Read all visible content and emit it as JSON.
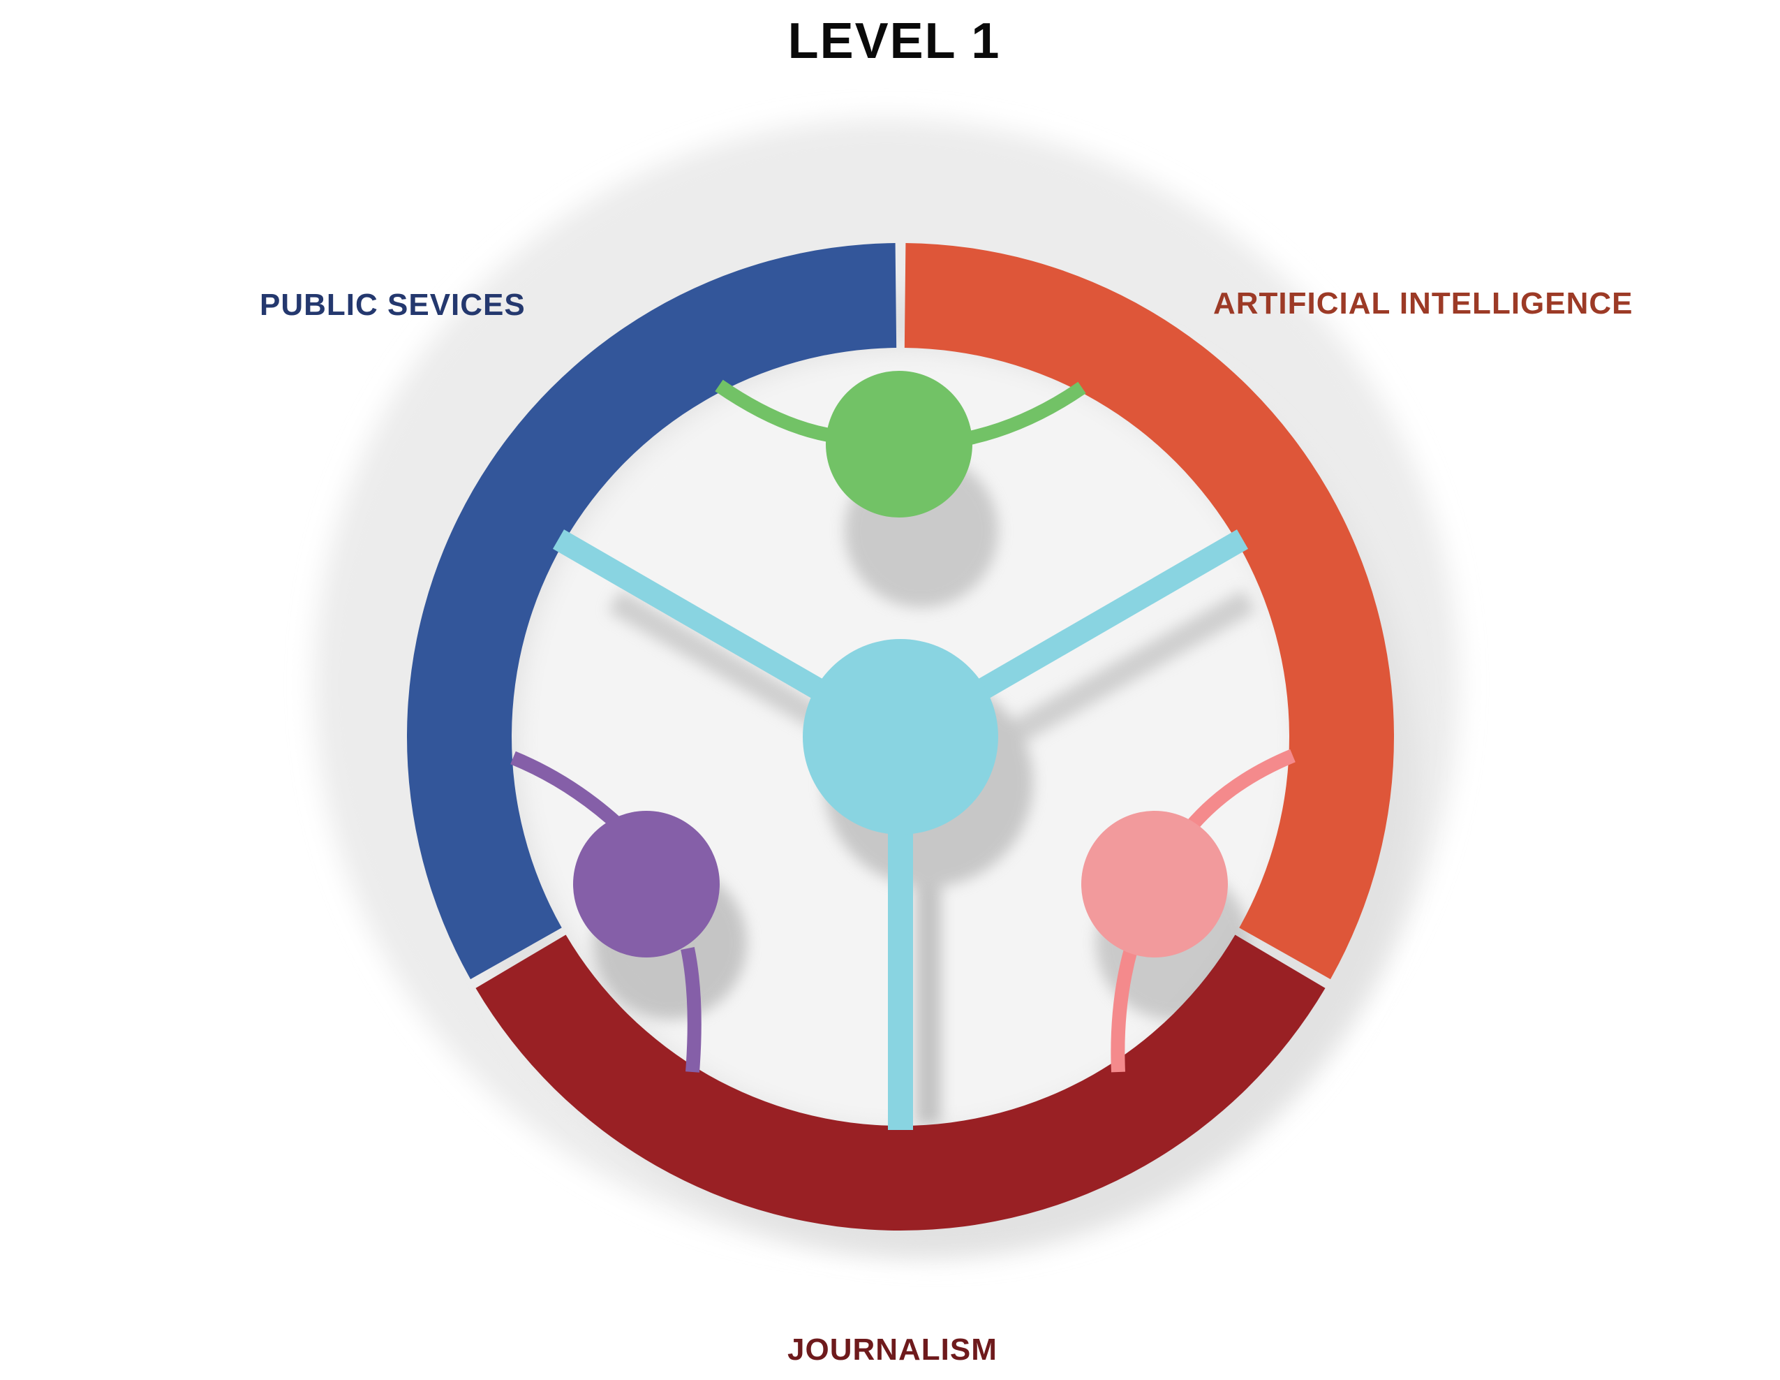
{
  "title": "LEVEL 1",
  "segments": [
    {
      "id": "public-services",
      "label": "PUBLIC SEVICES",
      "color": "#33569A",
      "text_color": "#24386E"
    },
    {
      "id": "artificial-intelligence",
      "label": "ARTIFICIAL INTELLIGENCE",
      "color": "#DE5639",
      "text_color": "#9C3A26"
    },
    {
      "id": "journalism",
      "label": "JOURNALISM",
      "color": "#992024",
      "text_color": "#6E1A1C"
    }
  ],
  "nodes": [
    {
      "id": "center",
      "color": "#89D4E1"
    },
    {
      "id": "top",
      "color": "#72C266"
    },
    {
      "id": "left",
      "color": "#855FA8"
    },
    {
      "id": "right",
      "color": "#F29A9C"
    }
  ]
}
